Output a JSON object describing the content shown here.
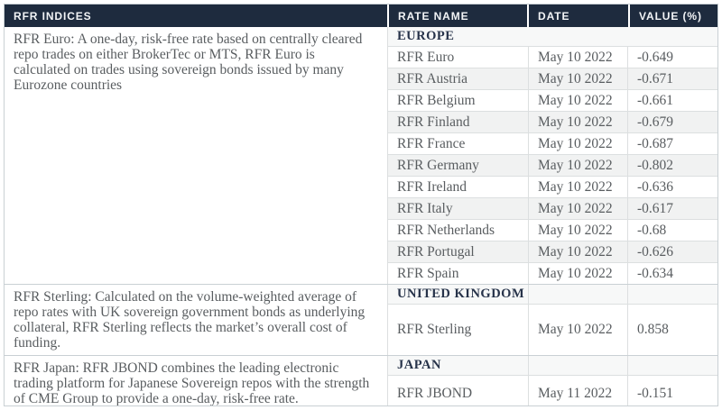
{
  "header": {
    "indices_label": "RFR INDICES",
    "rate_name_label": "RATE NAME",
    "date_label": "DATE",
    "value_label": "VALUE (%)"
  },
  "sections": [
    {
      "region": "EUROPE",
      "description": "RFR Euro: A one-day, risk-free rate based on centrally cleared repo trades on either BrokerTec or MTS, RFR Euro is calculated on trades using sovereign bonds issued by many Eurozone countries",
      "rows": [
        {
          "rate_name": "RFR Euro",
          "date": "May 10 2022",
          "value": "-0.649"
        },
        {
          "rate_name": "RFR Austria",
          "date": "May 10 2022",
          "value": "-0.671"
        },
        {
          "rate_name": "RFR Belgium",
          "date": "May 10 2022",
          "value": "-0.661"
        },
        {
          "rate_name": "RFR Finland",
          "date": "May 10 2022",
          "value": "-0.679"
        },
        {
          "rate_name": "RFR France",
          "date": "May 10 2022",
          "value": "-0.687"
        },
        {
          "rate_name": "RFR Germany",
          "date": "May 10 2022",
          "value": "-0.802"
        },
        {
          "rate_name": "RFR Ireland",
          "date": "May 10 2022",
          "value": "-0.636"
        },
        {
          "rate_name": "RFR Italy",
          "date": "May 10 2022",
          "value": "-0.617"
        },
        {
          "rate_name": "RFR Netherlands",
          "date": "May 10 2022",
          "value": "-0.68"
        },
        {
          "rate_name": "RFR Portugal",
          "date": "May 10 2022",
          "value": "-0.626"
        },
        {
          "rate_name": "RFR Spain",
          "date": "May 10 2022",
          "value": "-0.634"
        }
      ]
    },
    {
      "region": "UNITED KINGDOM",
      "description": "RFR Sterling: Calculated on the volume-weighted average of repo rates with UK sovereign government bonds as underlying collateral, RFR Sterling reflects the market’s overall cost of funding.",
      "rows": [
        {
          "rate_name": "RFR Sterling",
          "date": "May 10 2022",
          "value": "0.858"
        }
      ]
    },
    {
      "region": "JAPAN",
      "description": "RFR Japan: RFR JBOND combines the leading electronic trading platform for Japanese Sovereign repos with the strength of CME Group to provide a one-day, risk-free rate.",
      "rows": [
        {
          "rate_name": "RFR JBOND",
          "date": "May 11 2022",
          "value": "-0.151"
        }
      ]
    }
  ],
  "colors": {
    "header_bg": "#1e2b3e",
    "header_text": "#f2f4f6",
    "region_text": "#27334a",
    "body_text": "#595d60",
    "alt_row_bg": "#f1f2f2",
    "region_row_bg": "#f7f8f8",
    "border": "#dcdfe0",
    "outer_border": "#c9d0d4"
  }
}
